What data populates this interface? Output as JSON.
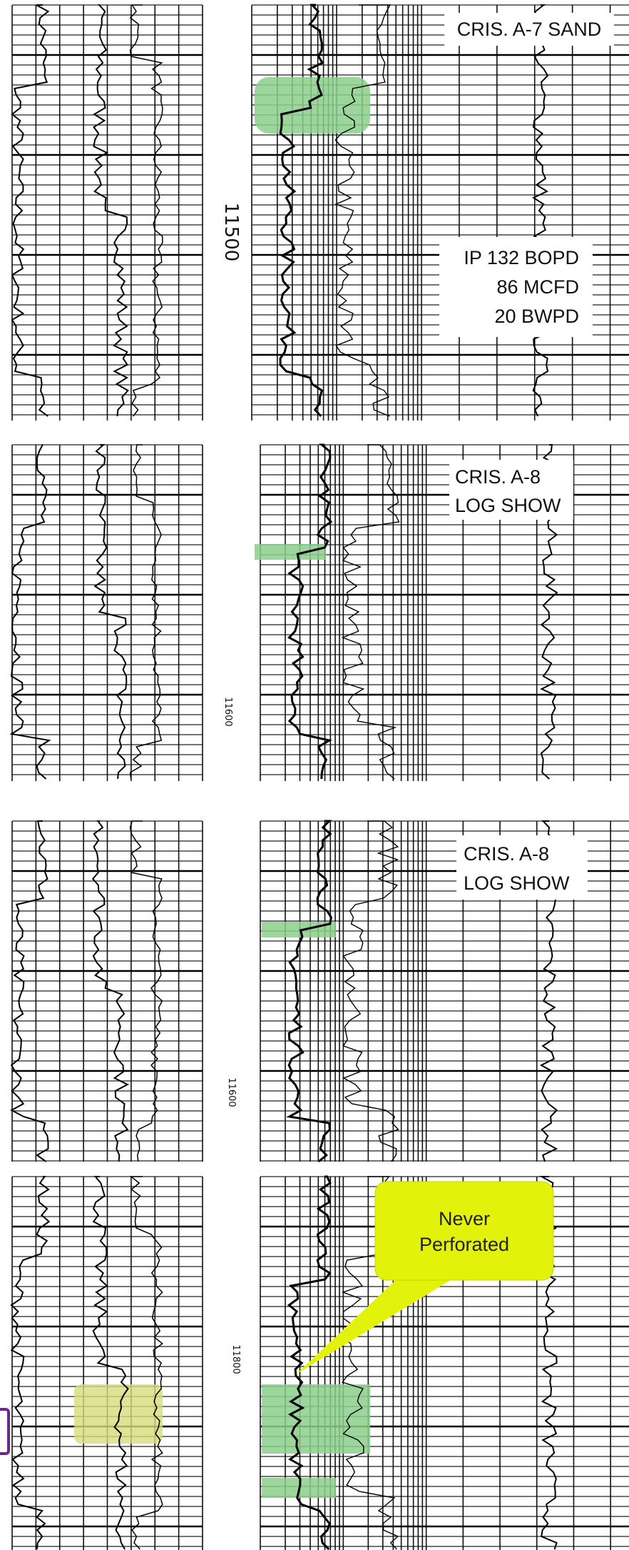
{
  "panels": [
    {
      "label_lines": [
        "CRIS. A-7 SAND"
      ],
      "depth": "11500",
      "test_lines": [
        "IP 132 BOPD",
        "86 MCFD",
        "20 BWPD"
      ]
    },
    {
      "label_lines": [
        "CRIS. A-8",
        "LOG SHOW"
      ],
      "depth": "11600"
    },
    {
      "label_lines": [
        "CRIS. A-8",
        "LOG SHOW"
      ],
      "depth": "11600"
    },
    {
      "depth": "11800",
      "callout_lines": [
        "Never",
        "Perforated"
      ]
    }
  ]
}
